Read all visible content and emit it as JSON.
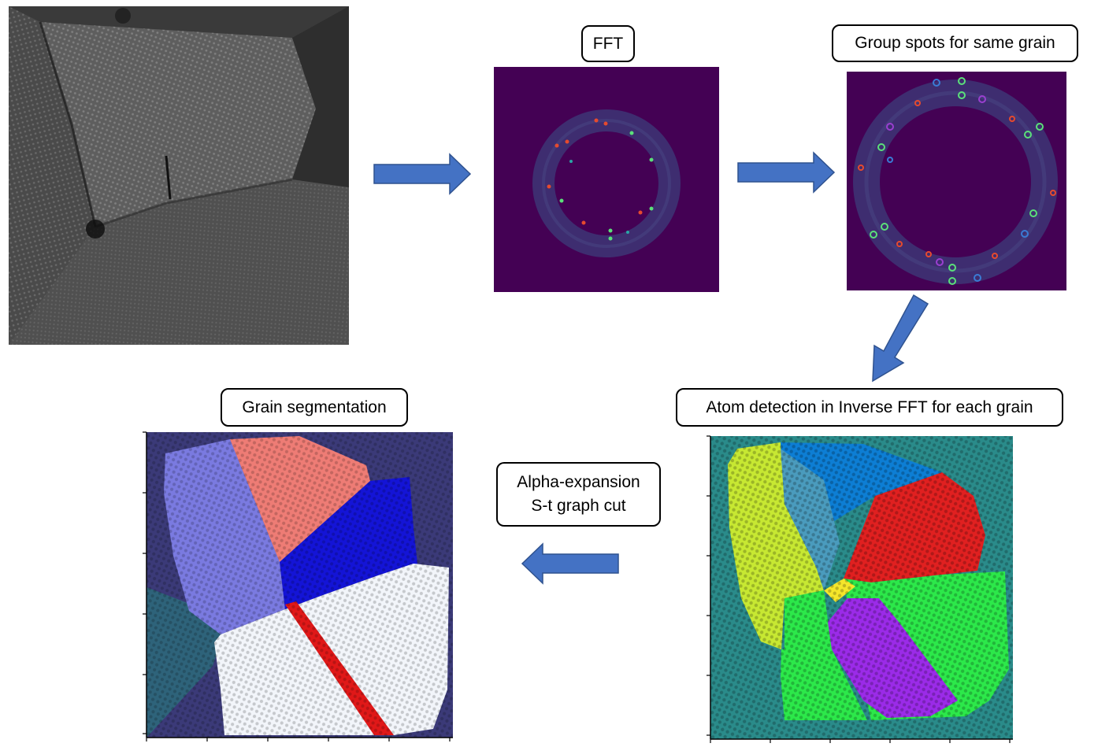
{
  "steps": {
    "fft_label": "FFT",
    "group_label": "Group spots for same grain",
    "atom_label": "Atom detection in Inverse FFT for each grain",
    "segmentation_label": "Grain segmentation",
    "graphcut_line1": "Alpha-expansion",
    "graphcut_line2": "S-t graph cut"
  },
  "colors": {
    "arrow": "#4472c4",
    "fft_background": "#440154",
    "fft_ring": "#3b2a6e",
    "atom_background": "#2a8b8a",
    "seg_background": "#3b3a78"
  },
  "panels": [
    "stem-image",
    "fft-spectrum",
    "grouped-spots",
    "atom-detection-map",
    "segmentation-map"
  ]
}
